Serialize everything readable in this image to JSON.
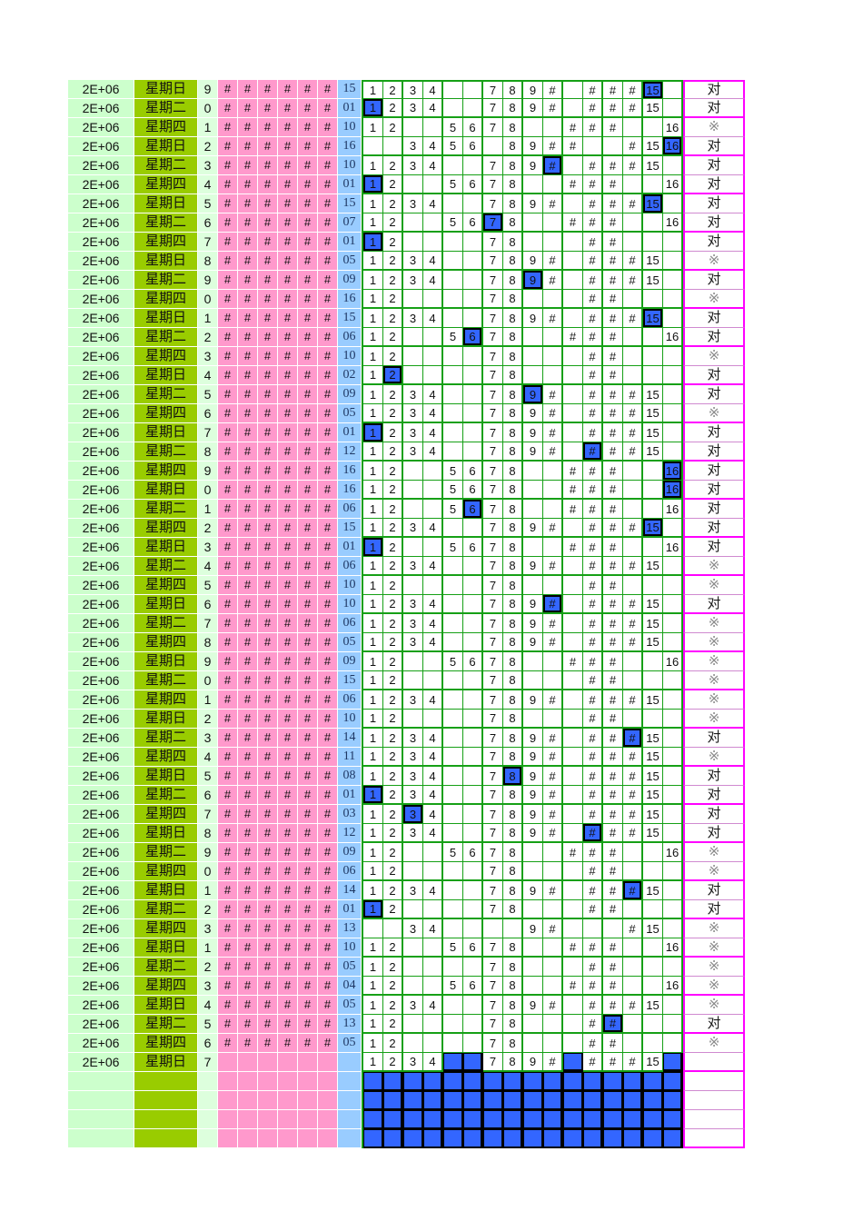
{
  "sheet": {
    "description": "lottery hit-miss tracking spreadsheet",
    "period_label": "2E+06",
    "hash_glyph": "#",
    "overflow_glyph": "#",
    "overflow_range": [
      10,
      14
    ],
    "hit_mark": "对",
    "miss_mark": "※",
    "grid_min": 1,
    "grid_max": 16,
    "hash_columns": 6,
    "footer_blank_rows": 4,
    "colors": {
      "period_bg": "#ccffcc",
      "day_bg": "#99cc00",
      "digit_bg": "#ddffdd",
      "hash_bg": "#ff99cc",
      "draw_bg": "#99ccff",
      "grid_line": "#16a016",
      "highlight_blue": "#3366ff",
      "result_border": "#ff00ff",
      "draw_text": "#1f3864",
      "miss_text": "#8a8a8a"
    },
    "rows": [
      {
        "day": "星期日",
        "digit": "9",
        "draw": "15",
        "numbers": [
          1,
          2,
          3,
          4,
          7,
          8,
          9,
          10,
          12,
          13,
          14,
          15
        ],
        "highlight": 15,
        "result": "对"
      },
      {
        "day": "星期二",
        "digit": "0",
        "draw": "01",
        "numbers": [
          1,
          2,
          3,
          4,
          7,
          8,
          9,
          10,
          12,
          13,
          14,
          15
        ],
        "highlight": 1,
        "result": "对"
      },
      {
        "day": "星期四",
        "digit": "1",
        "draw": "10",
        "numbers": [
          1,
          2,
          5,
          6,
          7,
          8,
          11,
          12,
          13,
          16
        ],
        "highlight": null,
        "result": "※"
      },
      {
        "day": "星期日",
        "digit": "2",
        "draw": "16",
        "numbers": [
          3,
          4,
          5,
          6,
          8,
          9,
          10,
          11,
          14,
          15,
          16
        ],
        "highlight": 16,
        "result": "对"
      },
      {
        "day": "星期二",
        "digit": "3",
        "draw": "10",
        "numbers": [
          1,
          2,
          3,
          4,
          7,
          8,
          9,
          10,
          12,
          13,
          14,
          15
        ],
        "highlight": 10,
        "result": "对"
      },
      {
        "day": "星期四",
        "digit": "4",
        "draw": "01",
        "numbers": [
          1,
          2,
          5,
          6,
          7,
          8,
          11,
          12,
          13,
          16
        ],
        "highlight": 1,
        "result": "对"
      },
      {
        "day": "星期日",
        "digit": "5",
        "draw": "15",
        "numbers": [
          1,
          2,
          3,
          4,
          7,
          8,
          9,
          10,
          12,
          13,
          14,
          15
        ],
        "highlight": 15,
        "result": "对"
      },
      {
        "day": "星期二",
        "digit": "6",
        "draw": "07",
        "numbers": [
          1,
          2,
          5,
          6,
          7,
          8,
          11,
          12,
          13,
          16
        ],
        "highlight": 7,
        "result": "对"
      },
      {
        "day": "星期四",
        "digit": "7",
        "draw": "01",
        "numbers": [
          1,
          2,
          7,
          8,
          12,
          13
        ],
        "highlight": 1,
        "result": "对"
      },
      {
        "day": "星期日",
        "digit": "8",
        "draw": "05",
        "numbers": [
          1,
          2,
          3,
          4,
          7,
          8,
          9,
          10,
          12,
          13,
          14,
          15
        ],
        "highlight": null,
        "result": "※"
      },
      {
        "day": "星期二",
        "digit": "9",
        "draw": "09",
        "numbers": [
          1,
          2,
          3,
          4,
          7,
          8,
          9,
          10,
          12,
          13,
          14,
          15
        ],
        "highlight": 9,
        "result": "对"
      },
      {
        "day": "星期四",
        "digit": "0",
        "draw": "16",
        "numbers": [
          1,
          2,
          7,
          8,
          12,
          13
        ],
        "highlight": null,
        "result": "※"
      },
      {
        "day": "星期日",
        "digit": "1",
        "draw": "15",
        "numbers": [
          1,
          2,
          3,
          4,
          7,
          8,
          9,
          10,
          12,
          13,
          14,
          15
        ],
        "highlight": 15,
        "result": "对"
      },
      {
        "day": "星期二",
        "digit": "2",
        "draw": "06",
        "numbers": [
          1,
          2,
          5,
          6,
          7,
          8,
          11,
          12,
          13,
          16
        ],
        "highlight": 6,
        "result": "对"
      },
      {
        "day": "星期四",
        "digit": "3",
        "draw": "10",
        "numbers": [
          1,
          2,
          7,
          8,
          12,
          13
        ],
        "highlight": null,
        "result": "※"
      },
      {
        "day": "星期日",
        "digit": "4",
        "draw": "02",
        "numbers": [
          1,
          2,
          7,
          8,
          12,
          13
        ],
        "highlight": 2,
        "result": "对"
      },
      {
        "day": "星期二",
        "digit": "5",
        "draw": "09",
        "numbers": [
          1,
          2,
          3,
          4,
          7,
          8,
          9,
          10,
          12,
          13,
          14,
          15
        ],
        "highlight": 9,
        "result": "对"
      },
      {
        "day": "星期四",
        "digit": "6",
        "draw": "05",
        "numbers": [
          1,
          2,
          3,
          4,
          7,
          8,
          9,
          10,
          12,
          13,
          14,
          15
        ],
        "highlight": null,
        "result": "※"
      },
      {
        "day": "星期日",
        "digit": "7",
        "draw": "01",
        "numbers": [
          1,
          2,
          3,
          4,
          7,
          8,
          9,
          10,
          12,
          13,
          14,
          15
        ],
        "highlight": 1,
        "result": "对"
      },
      {
        "day": "星期二",
        "digit": "8",
        "draw": "12",
        "numbers": [
          1,
          2,
          3,
          4,
          7,
          8,
          9,
          10,
          12,
          13,
          14,
          15
        ],
        "highlight": 12,
        "result": "对"
      },
      {
        "day": "星期四",
        "digit": "9",
        "draw": "16",
        "numbers": [
          1,
          2,
          5,
          6,
          7,
          8,
          11,
          12,
          13,
          16
        ],
        "highlight": 16,
        "result": "对"
      },
      {
        "day": "星期日",
        "digit": "0",
        "draw": "16",
        "numbers": [
          1,
          2,
          5,
          6,
          7,
          8,
          11,
          12,
          13,
          16
        ],
        "highlight": 16,
        "result": "对"
      },
      {
        "day": "星期二",
        "digit": "1",
        "draw": "06",
        "numbers": [
          1,
          2,
          5,
          6,
          7,
          8,
          11,
          12,
          13,
          16
        ],
        "highlight": 6,
        "result": "对"
      },
      {
        "day": "星期四",
        "digit": "2",
        "draw": "15",
        "numbers": [
          1,
          2,
          3,
          4,
          7,
          8,
          9,
          10,
          12,
          13,
          14,
          15
        ],
        "highlight": 15,
        "result": "对"
      },
      {
        "day": "星期日",
        "digit": "3",
        "draw": "01",
        "numbers": [
          1,
          2,
          5,
          6,
          7,
          8,
          11,
          12,
          13,
          16
        ],
        "highlight": 1,
        "result": "对"
      },
      {
        "day": "星期二",
        "digit": "4",
        "draw": "06",
        "numbers": [
          1,
          2,
          3,
          4,
          7,
          8,
          9,
          10,
          12,
          13,
          14,
          15
        ],
        "highlight": null,
        "result": "※"
      },
      {
        "day": "星期四",
        "digit": "5",
        "draw": "10",
        "numbers": [
          1,
          2,
          7,
          8,
          12,
          13
        ],
        "highlight": null,
        "result": "※"
      },
      {
        "day": "星期日",
        "digit": "6",
        "draw": "10",
        "numbers": [
          1,
          2,
          3,
          4,
          7,
          8,
          9,
          10,
          12,
          13,
          14,
          15
        ],
        "highlight": 10,
        "result": "对"
      },
      {
        "day": "星期二",
        "digit": "7",
        "draw": "06",
        "numbers": [
          1,
          2,
          3,
          4,
          7,
          8,
          9,
          10,
          12,
          13,
          14,
          15
        ],
        "highlight": null,
        "result": "※"
      },
      {
        "day": "星期四",
        "digit": "8",
        "draw": "05",
        "numbers": [
          1,
          2,
          3,
          4,
          7,
          8,
          9,
          10,
          12,
          13,
          14,
          15
        ],
        "highlight": null,
        "result": "※"
      },
      {
        "day": "星期日",
        "digit": "9",
        "draw": "09",
        "numbers": [
          1,
          2,
          5,
          6,
          7,
          8,
          11,
          12,
          13,
          16
        ],
        "highlight": null,
        "result": "※"
      },
      {
        "day": "星期二",
        "digit": "0",
        "draw": "15",
        "numbers": [
          1,
          2,
          7,
          8,
          12,
          13
        ],
        "highlight": null,
        "result": "※"
      },
      {
        "day": "星期四",
        "digit": "1",
        "draw": "06",
        "numbers": [
          1,
          2,
          3,
          4,
          7,
          8,
          9,
          10,
          12,
          13,
          14,
          15
        ],
        "highlight": null,
        "result": "※"
      },
      {
        "day": "星期日",
        "digit": "2",
        "draw": "10",
        "numbers": [
          1,
          2,
          7,
          8,
          12,
          13
        ],
        "highlight": null,
        "result": "※"
      },
      {
        "day": "星期二",
        "digit": "3",
        "draw": "14",
        "numbers": [
          1,
          2,
          3,
          4,
          7,
          8,
          9,
          10,
          12,
          13,
          14,
          15
        ],
        "highlight": 14,
        "result": "对"
      },
      {
        "day": "星期四",
        "digit": "4",
        "draw": "11",
        "numbers": [
          1,
          2,
          3,
          4,
          7,
          8,
          9,
          10,
          12,
          13,
          14,
          15
        ],
        "highlight": null,
        "result": "※"
      },
      {
        "day": "星期日",
        "digit": "5",
        "draw": "08",
        "numbers": [
          1,
          2,
          3,
          4,
          7,
          8,
          9,
          10,
          12,
          13,
          14,
          15
        ],
        "highlight": 8,
        "result": "对"
      },
      {
        "day": "星期二",
        "digit": "6",
        "draw": "01",
        "numbers": [
          1,
          2,
          3,
          4,
          7,
          8,
          9,
          10,
          12,
          13,
          14,
          15
        ],
        "highlight": 1,
        "result": "对"
      },
      {
        "day": "星期四",
        "digit": "7",
        "draw": "03",
        "numbers": [
          1,
          2,
          3,
          4,
          7,
          8,
          9,
          10,
          12,
          13,
          14,
          15
        ],
        "highlight": 3,
        "result": "对"
      },
      {
        "day": "星期日",
        "digit": "8",
        "draw": "12",
        "numbers": [
          1,
          2,
          3,
          4,
          7,
          8,
          9,
          10,
          12,
          13,
          14,
          15
        ],
        "highlight": 12,
        "result": "对"
      },
      {
        "day": "星期二",
        "digit": "9",
        "draw": "09",
        "numbers": [
          1,
          2,
          5,
          6,
          7,
          8,
          11,
          12,
          13,
          16
        ],
        "highlight": null,
        "result": "※"
      },
      {
        "day": "星期四",
        "digit": "0",
        "draw": "06",
        "numbers": [
          1,
          2,
          7,
          8,
          12,
          13
        ],
        "highlight": null,
        "result": "※"
      },
      {
        "day": "星期日",
        "digit": "1",
        "draw": "14",
        "numbers": [
          1,
          2,
          3,
          4,
          7,
          8,
          9,
          10,
          12,
          13,
          14,
          15
        ],
        "highlight": 14,
        "result": "对"
      },
      {
        "day": "星期二",
        "digit": "2",
        "draw": "01",
        "numbers": [
          1,
          2,
          7,
          8,
          12,
          13
        ],
        "highlight": 1,
        "result": "对"
      },
      {
        "day": "星期四",
        "digit": "3",
        "draw": "13",
        "numbers": [
          3,
          4,
          9,
          10,
          14,
          15
        ],
        "highlight": null,
        "result": "※"
      },
      {
        "day": "星期日",
        "digit": "1",
        "draw": "10",
        "numbers": [
          1,
          2,
          5,
          6,
          7,
          8,
          11,
          12,
          13,
          16
        ],
        "highlight": null,
        "result": "※"
      },
      {
        "day": "星期二",
        "digit": "2",
        "draw": "05",
        "numbers": [
          1,
          2,
          7,
          8,
          12,
          13
        ],
        "highlight": null,
        "result": "※"
      },
      {
        "day": "星期四",
        "digit": "3",
        "draw": "04",
        "numbers": [
          1,
          2,
          5,
          6,
          7,
          8,
          11,
          12,
          13,
          16
        ],
        "highlight": null,
        "result": "※"
      },
      {
        "day": "星期日",
        "digit": "4",
        "draw": "05",
        "numbers": [
          1,
          2,
          3,
          4,
          7,
          8,
          9,
          10,
          12,
          13,
          14,
          15
        ],
        "highlight": null,
        "result": "※"
      },
      {
        "day": "星期二",
        "digit": "5",
        "draw": "13",
        "numbers": [
          1,
          2,
          7,
          8,
          12,
          13
        ],
        "highlight": 13,
        "result": "对"
      },
      {
        "day": "星期四",
        "digit": "6",
        "draw": "05",
        "numbers": [
          1,
          2,
          7,
          8,
          12,
          13
        ],
        "highlight": null,
        "result": "※"
      },
      {
        "day": "星期日",
        "digit": "7",
        "draw": "",
        "numbers": [
          1,
          2,
          3,
          4,
          7,
          8,
          9,
          10,
          12,
          13,
          14,
          15
        ],
        "highlight": null,
        "result": "",
        "hashes": false,
        "fill_empty_blue": true
      }
    ]
  }
}
